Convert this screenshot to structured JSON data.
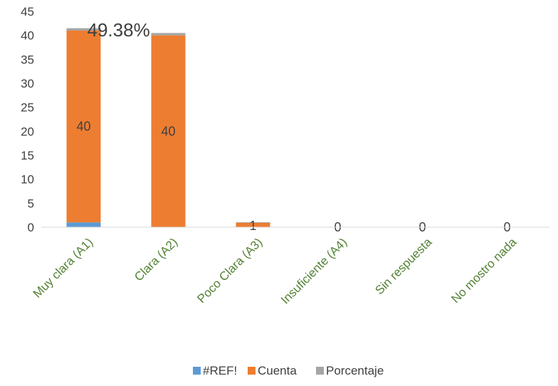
{
  "chart_data": {
    "type": "bar",
    "stacked": true,
    "categories": [
      "Muy clara (A1)",
      "Clara (A2)",
      "Poco Clara (A3)",
      "Insuficiente (A4)",
      "Sin respuesta",
      "No mostro nada"
    ],
    "series": [
      {
        "name": "#REF!",
        "values": [
          1,
          0,
          0,
          0,
          0,
          0
        ],
        "color": "#5B9BD5"
      },
      {
        "name": "Cuenta",
        "values": [
          40,
          40,
          1,
          0,
          0,
          0
        ],
        "color": "#ED7D31"
      },
      {
        "name": "Porcentaje",
        "values": [
          0.4938,
          0.4938,
          0.0123,
          0,
          0,
          0
        ],
        "color": "#A5A5A5"
      }
    ],
    "data_labels": [
      "40",
      "40",
      "1",
      "0",
      "0",
      "0"
    ],
    "annotation": "49.38%",
    "ylim": [
      0,
      45
    ],
    "yticks": [
      0,
      5,
      10,
      15,
      20,
      25,
      30,
      35,
      40,
      45
    ],
    "category_label_color": "#548235",
    "legend_position": "bottom",
    "grid": false
  }
}
